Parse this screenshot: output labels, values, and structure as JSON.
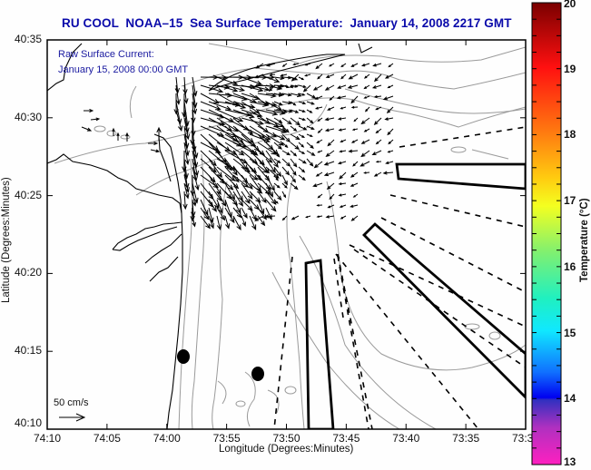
{
  "title": "RU COOL  NOAA–15  Sea Surface Temperature:  January 14, 2008 2217 GMT",
  "annotation": {
    "line1": "Raw Surface Current:",
    "line2": "January 15, 2008 00:00 GMT"
  },
  "scale_arrow_label": "50 cm/s",
  "x_axis": {
    "title": "Longitude (Degrees:Minutes)",
    "ticks": [
      "74:10",
      "74:05",
      "74:00",
      "73:55",
      "73:50",
      "73:45",
      "73:40",
      "73:35",
      "73:3"
    ]
  },
  "y_axis": {
    "title": "Latitude (Degrees:Minutes)",
    "ticks": [
      "40:35",
      "40:30",
      "40:25",
      "40:20",
      "40:15",
      "40:10"
    ]
  },
  "colorbar": {
    "title": "Temperature (°C)",
    "ticks": [
      "20",
      "19",
      "18",
      "17",
      "16",
      "15",
      "14",
      "13"
    ],
    "range": [
      13,
      20
    ]
  },
  "colors": {
    "title": "#0a0aaa",
    "annotation": "#1a1aa0",
    "coast": "#000000",
    "bathymetry": "#9a9a9a"
  }
}
